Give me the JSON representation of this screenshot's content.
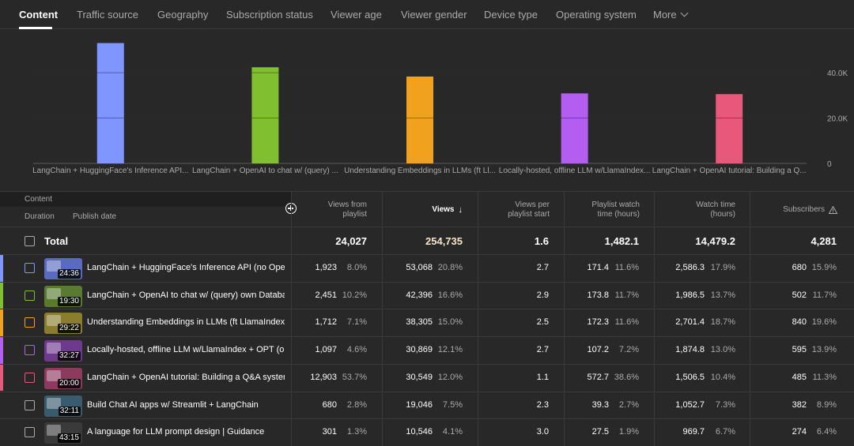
{
  "tabs": [
    {
      "label": "Content"
    },
    {
      "label": "Traffic source"
    },
    {
      "label": "Geography"
    },
    {
      "label": "Subscription status"
    },
    {
      "label": "Viewer age"
    },
    {
      "label": "Viewer gender"
    },
    {
      "label": "Device type"
    },
    {
      "label": "Operating system"
    },
    {
      "label": "More"
    }
  ],
  "chart_data": {
    "type": "bar",
    "categories": [
      "LangChain + HuggingFace's Inference API...",
      "LangChain + OpenAI to chat w/ (query) ...",
      "Understanding Embeddings in LLMs (ft Ll...",
      "Locally-hosted, offline LLM w/LlamaIndex...",
      "LangChain + OpenAI tutorial: Building a Q..."
    ],
    "values": [
      53068,
      42396,
      38305,
      30869,
      30549
    ],
    "colors": [
      "#7f95ff",
      "#7fbf30",
      "#f0a21e",
      "#b35ef0",
      "#e8587a"
    ],
    "ylim": [
      0,
      55000
    ],
    "yticks": [
      0,
      20000,
      40000
    ],
    "ytick_labels": [
      "0",
      "20.0K",
      "40.0K"
    ],
    "grid": true
  },
  "table": {
    "header": {
      "content": "Content",
      "duration": "Duration",
      "publish_date": "Publish date",
      "cols": [
        "Views from playlist",
        "Views",
        "Views per playlist start",
        "Playlist watch time (hours)",
        "Watch time (hours)",
        "Subscribers"
      ]
    },
    "total": {
      "label": "Total",
      "values": [
        "24,027",
        "254,735",
        "1.6",
        "1,482.1",
        "14,479.2",
        "4,281"
      ]
    },
    "rows": [
      {
        "title": "LangChain + HuggingFace's Inference API (no OpenAI ...",
        "duration": "24:36",
        "color": "#7f95ff",
        "vfp": "1,923",
        "vfp_pct": "8.0%",
        "views": "53,068",
        "views_pct": "20.8%",
        "vps": "2.7",
        "pwt": "171.4",
        "pwt_pct": "11.6%",
        "wt": "2,586.3",
        "wt_pct": "17.9%",
        "subs": "680",
        "subs_pct": "15.9%"
      },
      {
        "title": "LangChain + OpenAI to chat w/ (query) own Database ...",
        "duration": "19:30",
        "color": "#7fbf30",
        "vfp": "2,451",
        "vfp_pct": "10.2%",
        "views": "42,396",
        "views_pct": "16.6%",
        "vps": "2.9",
        "pwt": "173.8",
        "pwt_pct": "11.7%",
        "wt": "1,986.5",
        "wt_pct": "13.7%",
        "subs": "502",
        "subs_pct": "11.7%"
      },
      {
        "title": "Understanding Embeddings in LLMs (ft LlamaIndex + ...",
        "duration": "29:22",
        "color": "#f0a21e",
        "vfp": "1,712",
        "vfp_pct": "7.1%",
        "views": "38,305",
        "views_pct": "15.0%",
        "vps": "2.5",
        "pwt": "172.3",
        "pwt_pct": "11.6%",
        "wt": "2,701.4",
        "wt_pct": "18.7%",
        "subs": "840",
        "subs_pct": "19.6%"
      },
      {
        "title": "Locally-hosted, offline LLM w/LlamaIndex + OPT (open...",
        "duration": "32:27",
        "color": "#b35ef0",
        "vfp": "1,097",
        "vfp_pct": "4.6%",
        "views": "30,869",
        "views_pct": "12.1%",
        "vps": "2.7",
        "pwt": "107.2",
        "pwt_pct": "7.2%",
        "wt": "1,874.8",
        "wt_pct": "13.0%",
        "subs": "595",
        "subs_pct": "13.9%"
      },
      {
        "title": "LangChain + OpenAI tutorial: Building a Q&A system w...",
        "duration": "20:00",
        "color": "#e8587a",
        "vfp": "12,903",
        "vfp_pct": "53.7%",
        "views": "30,549",
        "views_pct": "12.0%",
        "vps": "1.1",
        "pwt": "572.7",
        "pwt_pct": "38.6%",
        "wt": "1,506.5",
        "wt_pct": "10.4%",
        "subs": "485",
        "subs_pct": "11.3%"
      },
      {
        "title": "Build Chat AI apps w/ Streamlit + LangChain",
        "duration": "32:11",
        "color": "",
        "vfp": "680",
        "vfp_pct": "2.8%",
        "views": "19,046",
        "views_pct": "7.5%",
        "vps": "2.3",
        "pwt": "39.3",
        "pwt_pct": "2.7%",
        "wt": "1,052.7",
        "wt_pct": "7.3%",
        "subs": "382",
        "subs_pct": "8.9%"
      },
      {
        "title": "A language for LLM prompt design | Guidance",
        "duration": "43:15",
        "color": "",
        "vfp": "301",
        "vfp_pct": "1.3%",
        "views": "10,546",
        "views_pct": "4.1%",
        "vps": "3.0",
        "pwt": "27.5",
        "pwt_pct": "1.9%",
        "wt": "969.7",
        "wt_pct": "6.7%",
        "subs": "274",
        "subs_pct": "6.4%"
      }
    ]
  }
}
